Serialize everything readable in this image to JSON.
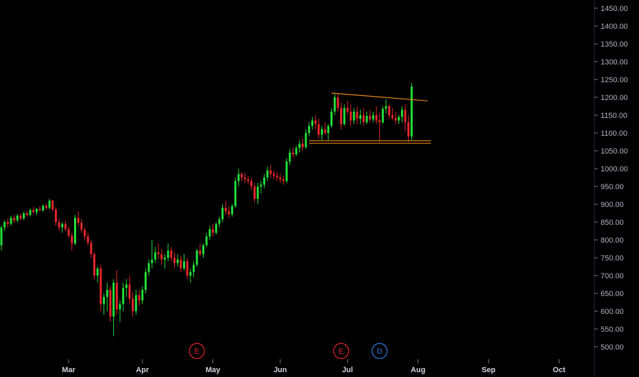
{
  "colors": {
    "background": "#000000",
    "up": "#22e03a",
    "down": "#e8262b",
    "trendline": "#f08a1e",
    "axis_text": "#b2b5be",
    "marker_earnings": "#e8262b",
    "marker_dividend": "#2f7be6",
    "divider": "#2a2e39"
  },
  "chart_data": {
    "type": "candlestick",
    "title": "",
    "y_axis": {
      "position": "right",
      "range": [
        480,
        1460
      ],
      "tick_values": [
        500,
        550,
        600,
        650,
        700,
        750,
        800,
        850,
        900,
        950,
        1000,
        1050,
        1100,
        1150,
        1200,
        1250,
        1300,
        1350,
        1400,
        1450
      ],
      "tick_labels": [
        "500.00",
        "550.00",
        "600.00",
        "650.00",
        "700.00",
        "750.00",
        "800.00",
        "850.00",
        "900.00",
        "950.00",
        "1000.00",
        "1050.00",
        "1100.00",
        "1150.00",
        "1200.00",
        "1250.00",
        "1300.00",
        "1350.00",
        "1400.00",
        "1450.00"
      ]
    },
    "x_axis": {
      "months": [
        "Mar",
        "Apr",
        "May",
        "Jun",
        "Jul",
        "Aug",
        "Sep",
        "Oct"
      ],
      "month_start_bar_index": [
        21,
        44,
        66,
        87,
        108,
        130,
        152,
        174
      ]
    },
    "grid": false,
    "ohlc": [
      [
        785,
        840,
        770,
        835
      ],
      [
        835,
        855,
        825,
        850
      ],
      [
        850,
        860,
        835,
        845
      ],
      [
        845,
        868,
        840,
        862
      ],
      [
        862,
        870,
        848,
        855
      ],
      [
        855,
        872,
        850,
        868
      ],
      [
        868,
        875,
        855,
        860
      ],
      [
        860,
        880,
        855,
        875
      ],
      [
        875,
        882,
        865,
        870
      ],
      [
        870,
        888,
        866,
        884
      ],
      [
        884,
        892,
        875,
        878
      ],
      [
        878,
        890,
        870,
        887
      ],
      [
        887,
        895,
        880,
        883
      ],
      [
        883,
        900,
        878,
        896
      ],
      [
        896,
        902,
        885,
        890
      ],
      [
        890,
        915,
        885,
        910
      ],
      [
        910,
        912,
        880,
        885
      ],
      [
        885,
        892,
        840,
        850
      ],
      [
        850,
        860,
        825,
        835
      ],
      [
        835,
        850,
        820,
        845
      ],
      [
        845,
        855,
        825,
        830
      ],
      [
        830,
        838,
        805,
        812
      ],
      [
        812,
        820,
        770,
        790
      ],
      [
        790,
        870,
        785,
        862
      ],
      [
        862,
        880,
        840,
        848
      ],
      [
        848,
        860,
        820,
        828
      ],
      [
        828,
        835,
        800,
        810
      ],
      [
        810,
        820,
        785,
        792
      ],
      [
        792,
        800,
        750,
        760
      ],
      [
        760,
        765,
        690,
        700
      ],
      [
        700,
        725,
        680,
        720
      ],
      [
        720,
        730,
        600,
        620
      ],
      [
        620,
        650,
        590,
        640
      ],
      [
        640,
        680,
        600,
        660
      ],
      [
        660,
        670,
        570,
        585
      ],
      [
        585,
        690,
        530,
        680
      ],
      [
        680,
        715,
        590,
        605
      ],
      [
        605,
        630,
        570,
        620
      ],
      [
        620,
        680,
        600,
        665
      ],
      [
        665,
        690,
        640,
        675
      ],
      [
        675,
        700,
        620,
        635
      ],
      [
        635,
        655,
        585,
        600
      ],
      [
        600,
        660,
        590,
        645
      ],
      [
        645,
        660,
        615,
        630
      ],
      [
        630,
        670,
        620,
        660
      ],
      [
        660,
        720,
        650,
        710
      ],
      [
        710,
        745,
        700,
        735
      ],
      [
        735,
        800,
        720,
        745
      ],
      [
        745,
        780,
        735,
        765
      ],
      [
        765,
        790,
        745,
        760
      ],
      [
        760,
        775,
        730,
        745
      ],
      [
        745,
        760,
        720,
        750
      ],
      [
        750,
        790,
        740,
        770
      ],
      [
        770,
        780,
        740,
        750
      ],
      [
        750,
        765,
        720,
        735
      ],
      [
        735,
        760,
        725,
        745
      ],
      [
        745,
        755,
        710,
        720
      ],
      [
        720,
        760,
        715,
        740
      ],
      [
        740,
        750,
        690,
        700
      ],
      [
        700,
        720,
        680,
        710
      ],
      [
        710,
        740,
        695,
        730
      ],
      [
        730,
        775,
        725,
        770
      ],
      [
        770,
        790,
        755,
        760
      ],
      [
        760,
        790,
        750,
        785
      ],
      [
        785,
        820,
        780,
        810
      ],
      [
        810,
        840,
        800,
        830
      ],
      [
        830,
        845,
        810,
        820
      ],
      [
        820,
        850,
        815,
        845
      ],
      [
        845,
        865,
        835,
        858
      ],
      [
        858,
        900,
        850,
        890
      ],
      [
        890,
        910,
        870,
        880
      ],
      [
        880,
        895,
        860,
        872
      ],
      [
        872,
        900,
        865,
        895
      ],
      [
        895,
        975,
        890,
        965
      ],
      [
        965,
        1000,
        950,
        985
      ],
      [
        985,
        990,
        965,
        975
      ],
      [
        975,
        988,
        960,
        970
      ],
      [
        970,
        980,
        955,
        965
      ],
      [
        965,
        975,
        940,
        950
      ],
      [
        950,
        960,
        905,
        915
      ],
      [
        915,
        960,
        900,
        950
      ],
      [
        950,
        965,
        930,
        955
      ],
      [
        955,
        985,
        945,
        975
      ],
      [
        975,
        1005,
        965,
        995
      ],
      [
        995,
        1010,
        975,
        985
      ],
      [
        985,
        995,
        970,
        980
      ],
      [
        980,
        990,
        965,
        975
      ],
      [
        975,
        985,
        960,
        970
      ],
      [
        970,
        980,
        955,
        965
      ],
      [
        965,
        1030,
        960,
        1020
      ],
      [
        1020,
        1055,
        1010,
        1045
      ],
      [
        1045,
        1060,
        1030,
        1040
      ],
      [
        1040,
        1065,
        1035,
        1058
      ],
      [
        1058,
        1080,
        1045,
        1070
      ],
      [
        1070,
        1085,
        1050,
        1060
      ],
      [
        1060,
        1110,
        1055,
        1100
      ],
      [
        1100,
        1130,
        1090,
        1120
      ],
      [
        1120,
        1145,
        1110,
        1135
      ],
      [
        1135,
        1150,
        1110,
        1125
      ],
      [
        1125,
        1140,
        1085,
        1095
      ],
      [
        1095,
        1120,
        1080,
        1110
      ],
      [
        1110,
        1130,
        1095,
        1100
      ],
      [
        1100,
        1125,
        1080,
        1120
      ],
      [
        1120,
        1170,
        1115,
        1160
      ],
      [
        1160,
        1210,
        1150,
        1200
      ],
      [
        1200,
        1212,
        1160,
        1170
      ],
      [
        1170,
        1185,
        1110,
        1125
      ],
      [
        1125,
        1180,
        1120,
        1170
      ],
      [
        1170,
        1190,
        1150,
        1160
      ],
      [
        1160,
        1180,
        1120,
        1135
      ],
      [
        1135,
        1170,
        1125,
        1160
      ],
      [
        1160,
        1175,
        1125,
        1140
      ],
      [
        1140,
        1165,
        1125,
        1150
      ],
      [
        1150,
        1170,
        1120,
        1130
      ],
      [
        1130,
        1160,
        1125,
        1148
      ],
      [
        1148,
        1165,
        1130,
        1138
      ],
      [
        1138,
        1160,
        1130,
        1150
      ],
      [
        1150,
        1175,
        1125,
        1135
      ],
      [
        1135,
        1155,
        1075,
        1130
      ],
      [
        1130,
        1175,
        1125,
        1168
      ],
      [
        1168,
        1195,
        1155,
        1175
      ],
      [
        1175,
        1180,
        1140,
        1150
      ],
      [
        1150,
        1170,
        1135,
        1142
      ],
      [
        1142,
        1160,
        1125,
        1135
      ],
      [
        1135,
        1150,
        1125,
        1145
      ],
      [
        1145,
        1175,
        1130,
        1165
      ],
      [
        1165,
        1180,
        1105,
        1130
      ],
      [
        1130,
        1150,
        1075,
        1090
      ],
      [
        1090,
        1240,
        1080,
        1230
      ]
    ],
    "trendlines": [
      {
        "from": {
          "bar": 103,
          "value": 1212
        },
        "to": {
          "bar": 133,
          "value": 1190
        }
      },
      {
        "from": {
          "bar": 96,
          "value": 1078
        },
        "to": {
          "bar": 134,
          "value": 1078
        }
      },
      {
        "from": {
          "bar": 96,
          "value": 1071
        },
        "to": {
          "bar": 134,
          "value": 1071
        }
      }
    ],
    "event_markers": [
      {
        "label": "E",
        "kind": "earnings",
        "bar": 61
      },
      {
        "label": "E",
        "kind": "earnings",
        "bar": 106
      },
      {
        "label": "D",
        "kind": "dividend",
        "bar": 118
      }
    ]
  }
}
